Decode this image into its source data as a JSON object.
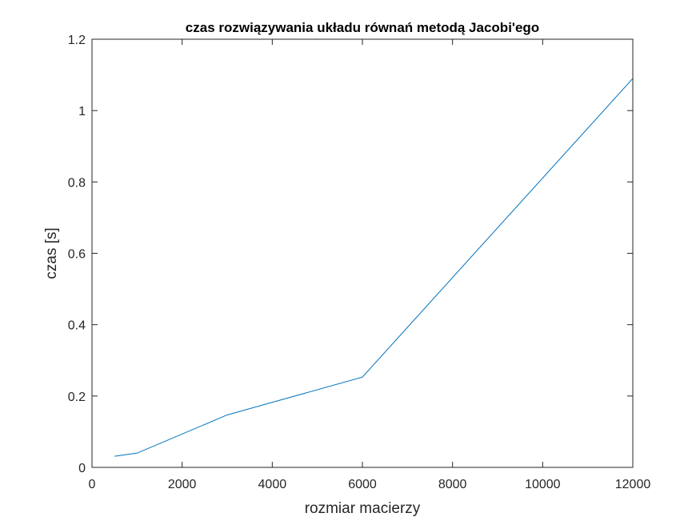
{
  "chart_data": {
    "type": "line",
    "title": "czas rozwiązywania układu równań metodą Jacobi'ego",
    "xlabel": "rozmiar macierzy",
    "ylabel": "czas [s]",
    "xlim": [
      0,
      12000
    ],
    "ylim": [
      0,
      1.2
    ],
    "xticks": [
      "0",
      "2000",
      "4000",
      "6000",
      "8000",
      "10000",
      "12000"
    ],
    "yticks": [
      "0",
      "0.2",
      "0.4",
      "0.6",
      "0.8",
      "1",
      "1.2"
    ],
    "grid": false,
    "legend": "none",
    "series": [
      {
        "color": "#0072BD",
        "x": [
          500,
          1000,
          3000,
          6000,
          12000
        ],
        "y": [
          0.031,
          0.04,
          0.147,
          0.253,
          1.09
        ]
      }
    ]
  }
}
